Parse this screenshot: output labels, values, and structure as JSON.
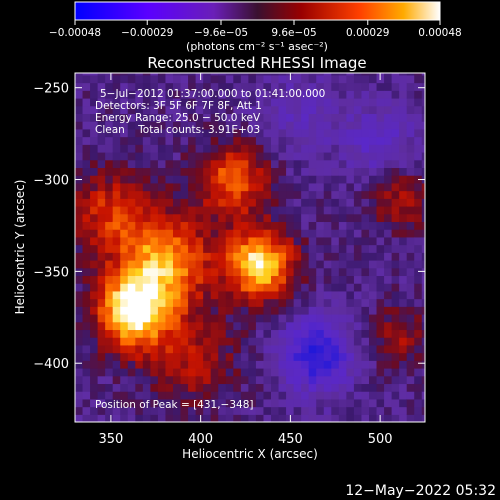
{
  "chart_data": {
    "type": "heatmap",
    "title": "Reconstructed RHESSI Image",
    "xlabel": "Heliocentric X (arcsec)",
    "ylabel": "Heliocentric Y (arcsec)",
    "xlim": [
      330,
      525
    ],
    "ylim": [
      -432,
      -242
    ],
    "x_ticks": [
      350,
      400,
      450,
      500
    ],
    "y_ticks": [
      -250,
      -300,
      -350,
      -400
    ],
    "x_tick_labels": [
      "350",
      "400",
      "450",
      "500"
    ],
    "y_tick_labels": [
      "−250",
      "−300",
      "−350",
      "−400"
    ],
    "colorbar": {
      "range": [
        -0.00048,
        0.00048
      ],
      "ticks": [
        -0.00048,
        -0.00029,
        -9.6e-05,
        9.6e-05,
        0.00029,
        0.00048
      ],
      "tick_labels": [
        "−0.00048",
        "−0.00029",
        "−9.6e−05",
        "9.6e−05",
        "0.00029",
        "0.00048"
      ],
      "units_label": "(photons cm⁻² s⁻¹ asec⁻²)",
      "colors": [
        "#0000ff",
        "#7a00ff",
        "#4a1f6e",
        "#8a0000",
        "#ff3a00",
        "#ffb000",
        "#ffffff"
      ]
    },
    "peak": {
      "x": 431,
      "y": -348
    },
    "sources": [
      {
        "x": 362,
        "y": -372,
        "amplitude": 1.0,
        "sigma": 14
      },
      {
        "x": 380,
        "y": -345,
        "amplitude": 0.75,
        "sigma": 18
      },
      {
        "x": 433,
        "y": -346,
        "amplitude": 0.95,
        "sigma": 13
      },
      {
        "x": 418,
        "y": -300,
        "amplitude": 0.6,
        "sigma": 14
      },
      {
        "x": 350,
        "y": -318,
        "amplitude": 0.45,
        "sigma": 16
      },
      {
        "x": 395,
        "y": -398,
        "amplitude": 0.35,
        "sigma": 18
      },
      {
        "x": 512,
        "y": -310,
        "amplitude": 0.35,
        "sigma": 12
      },
      {
        "x": 510,
        "y": -385,
        "amplitude": 0.3,
        "sigma": 12
      }
    ],
    "negative_regions": [
      {
        "x": 465,
        "y": -395,
        "amplitude": -0.6,
        "sigma": 14
      },
      {
        "x": 500,
        "y": -280,
        "amplitude": -0.3,
        "sigma": 14
      },
      {
        "x": 455,
        "y": -265,
        "amplitude": -0.2,
        "sigma": 16
      }
    ]
  },
  "annotations": {
    "time_range": "5−Jul−2012 01:37:00.000 to 01:41:00.000",
    "detectors": "Detectors: 3F 5F 6F 7F 8F, Att 1",
    "energy_range": "Energy Range: 25.0 − 50.0 keV",
    "method_counts": "Clean    Total counts: 3.91E+03",
    "peak_position": "Position of Peak = [431,−348]"
  },
  "footer": {
    "timestamp": "12−May−2022 05:32"
  }
}
